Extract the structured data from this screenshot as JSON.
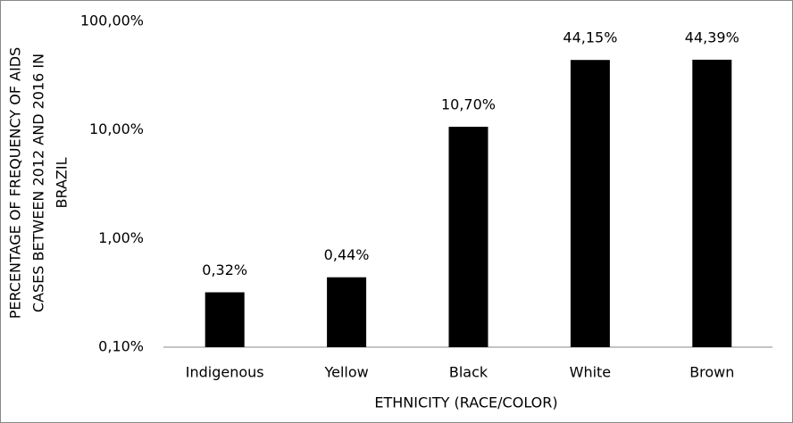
{
  "chart_data": {
    "type": "bar",
    "ylabel": [
      "PERCENTAGE OF FREQUENCY OF AIDS",
      "CASES  BETWEEN 2012 AND 2016 IN",
      "BRAZIL"
    ],
    "xlabel": "ETHNICITY (RACE/COLOR)",
    "categories": [
      "Indigenous",
      "Yellow",
      "Black",
      "White",
      "Brown"
    ],
    "values": [
      0.32,
      0.44,
      10.7,
      44.15,
      44.39
    ],
    "value_labels": [
      "0,32%",
      "0,44%",
      "10,70%",
      "44,15%",
      "44,39%"
    ],
    "color": "#000000",
    "log_scale": true,
    "ylim": [
      0.1,
      100
    ],
    "yticks": [
      {
        "value": 0.1,
        "label": "0,10%"
      },
      {
        "value": 1,
        "label": "1,00%"
      },
      {
        "value": 10,
        "label": "10,00%"
      },
      {
        "value": 100,
        "label": "100,00%"
      }
    ],
    "grid": false
  }
}
